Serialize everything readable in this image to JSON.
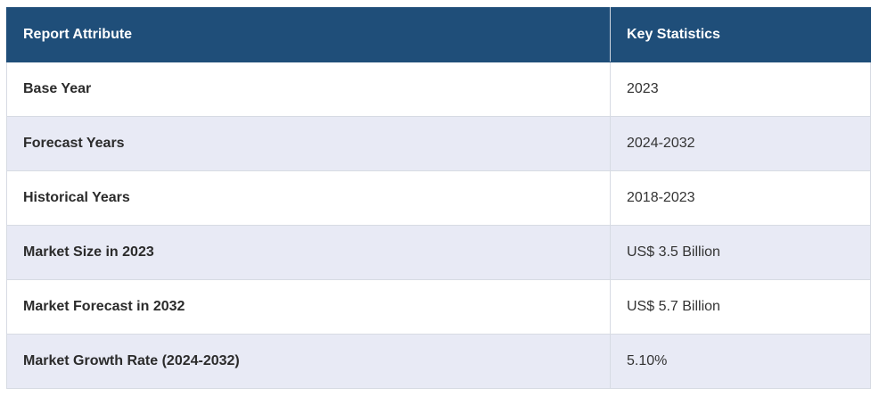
{
  "table": {
    "headers": [
      "Report Attribute",
      "Key Statistics"
    ],
    "rows": [
      {
        "attribute": "Base Year",
        "value": "2023"
      },
      {
        "attribute": "Forecast Years",
        "value": "2024-2032"
      },
      {
        "attribute": "Historical Years",
        "value": "2018-2023"
      },
      {
        "attribute": "Market Size in 2023",
        "value": "US$ 3.5 Billion"
      },
      {
        "attribute": "Market Forecast in 2032",
        "value": "US$ 5.7 Billion"
      },
      {
        "attribute": "Market Growth Rate (2024-2032)",
        "value": "5.10%"
      }
    ],
    "colors": {
      "header_bg": "#1f4e79",
      "header_text": "#ffffff",
      "stripe_bg": "#e8eaf5",
      "row_bg": "#ffffff"
    }
  }
}
